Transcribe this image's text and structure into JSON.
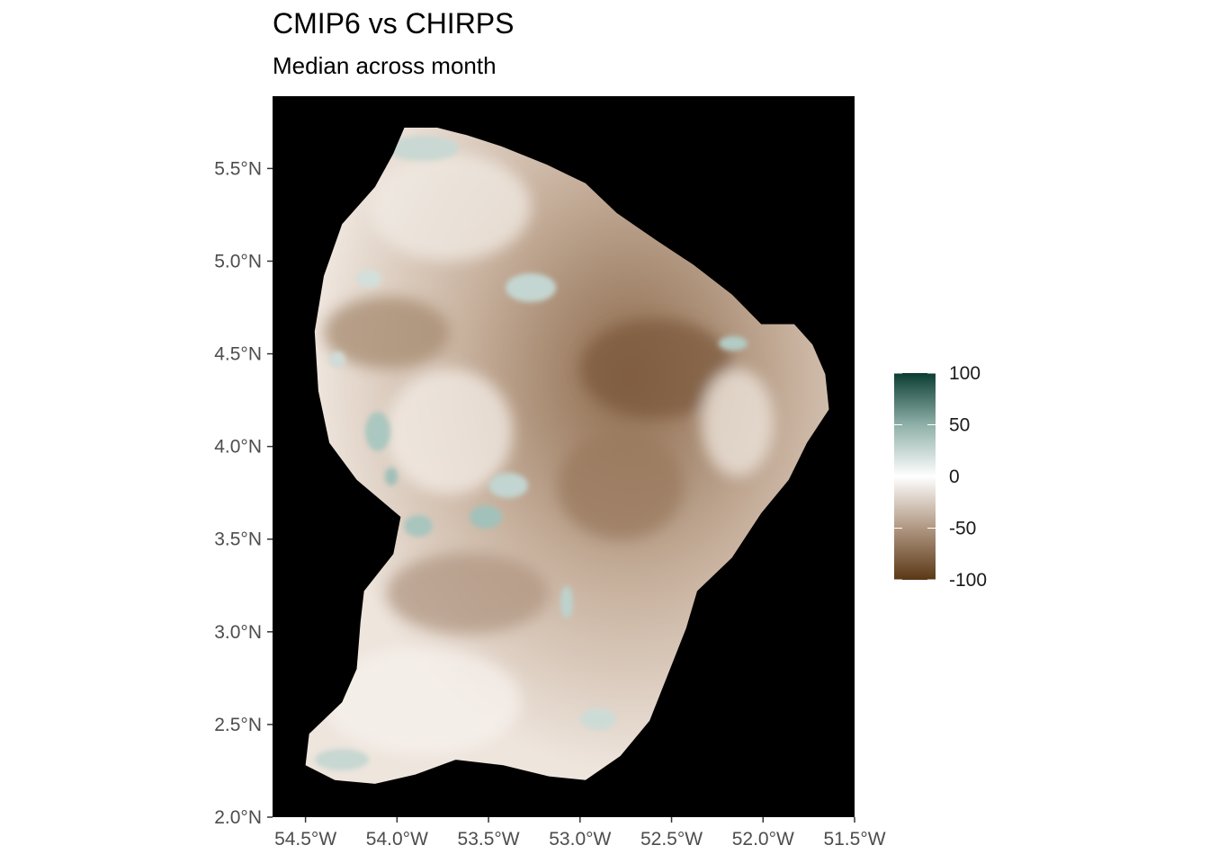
{
  "title": "CMIP6 vs CHIRPS",
  "subtitle": "Median across month",
  "colors": {
    "panel_background": "#000000",
    "scale_high": "#0b3d33",
    "scale_mid": "#ffffff",
    "scale_low": "#5a3815"
  },
  "map_data": {
    "type": "raster",
    "region_fill_note_value": 0,
    "x_axis": {
      "lim": [
        -54.68,
        -51.5
      ],
      "ticks": [
        -54.5,
        -54.0,
        -53.5,
        -53.0,
        -52.5,
        -52.0,
        -51.5
      ],
      "tick_labels": [
        "54.5°W",
        "54.0°W",
        "53.5°W",
        "53.0°W",
        "52.5°W",
        "52.0°W",
        "51.5°W"
      ]
    },
    "y_axis": {
      "lim": [
        2.0,
        5.89
      ],
      "ticks": [
        2.0,
        2.5,
        3.0,
        3.5,
        4.0,
        4.5,
        5.0,
        5.5
      ],
      "tick_labels": [
        "2.0°N",
        "2.5°N",
        "3.0°N",
        "3.5°N",
        "4.0°N",
        "4.5°N",
        "5.0°N",
        "5.5°N"
      ]
    },
    "legend": {
      "position": "right",
      "range": [
        -100,
        100
      ],
      "breaks": [
        100,
        50,
        0,
        -50,
        -100
      ],
      "break_labels": [
        "100",
        "50",
        "0",
        "-50",
        "-100"
      ]
    },
    "outline": [
      [
        -53.96,
        5.72
      ],
      [
        -53.78,
        5.72
      ],
      [
        -53.62,
        5.68
      ],
      [
        -53.43,
        5.62
      ],
      [
        -53.18,
        5.52
      ],
      [
        -52.97,
        5.42
      ],
      [
        -52.8,
        5.26
      ],
      [
        -52.58,
        5.11
      ],
      [
        -52.38,
        4.98
      ],
      [
        -52.17,
        4.82
      ],
      [
        -52.01,
        4.66
      ],
      [
        -51.83,
        4.66
      ],
      [
        -51.73,
        4.55
      ],
      [
        -51.66,
        4.39
      ],
      [
        -51.64,
        4.2
      ],
      [
        -51.76,
        4.02
      ],
      [
        -51.86,
        3.82
      ],
      [
        -52.01,
        3.64
      ],
      [
        -52.17,
        3.4
      ],
      [
        -52.36,
        3.22
      ],
      [
        -52.42,
        3.02
      ],
      [
        -52.52,
        2.77
      ],
      [
        -52.62,
        2.52
      ],
      [
        -52.78,
        2.33
      ],
      [
        -52.97,
        2.2
      ],
      [
        -53.17,
        2.22
      ],
      [
        -53.42,
        2.28
      ],
      [
        -53.68,
        2.31
      ],
      [
        -53.9,
        2.23
      ],
      [
        -54.12,
        2.18
      ],
      [
        -54.34,
        2.2
      ],
      [
        -54.5,
        2.28
      ],
      [
        -54.48,
        2.45
      ],
      [
        -54.3,
        2.62
      ],
      [
        -54.22,
        2.8
      ],
      [
        -54.2,
        3.05
      ],
      [
        -54.18,
        3.22
      ],
      [
        -54.02,
        3.42
      ],
      [
        -53.98,
        3.62
      ],
      [
        -54.22,
        3.82
      ],
      [
        -54.37,
        4.02
      ],
      [
        -54.43,
        4.3
      ],
      [
        -54.45,
        4.62
      ],
      [
        -54.4,
        4.92
      ],
      [
        -54.3,
        5.2
      ],
      [
        -54.12,
        5.4
      ],
      [
        -54.02,
        5.58
      ]
    ]
  }
}
